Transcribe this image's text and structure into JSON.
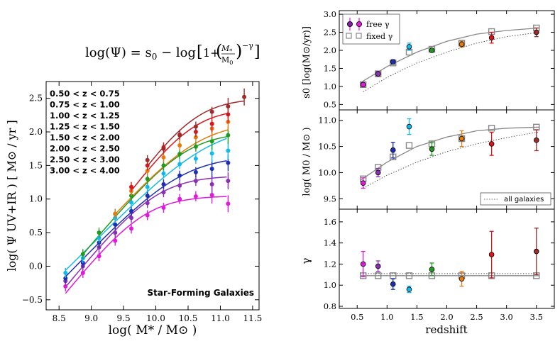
{
  "chart_data": [
    {
      "type": "scatter",
      "title": "",
      "equation": {
        "lhs": "log(Ψ) = s",
        "lhs_sub": "0",
        "mid": " − log",
        "frac_num": "M",
        "frac_num_sub": "*",
        "frac_den": "M",
        "frac_den_sub": "0",
        "exp": "−γ",
        "one_plus": "1+"
      },
      "xlabel": "log( M* / M⊙ )",
      "ylabel": "log( Ψ UV+IR ) [ M⊙ / yr ]",
      "xlim": [
        8.3,
        11.6
      ],
      "ylim": [
        -0.65,
        2.75
      ],
      "xticks": [
        "8.5",
        "9.0",
        "9.5",
        "10.0",
        "10.5",
        "11.0",
        "11.5"
      ],
      "yticks": [
        "−0.5",
        "0.0",
        "0.5",
        "1.0",
        "1.5",
        "2.0",
        "2.5"
      ],
      "annotation": "Star-Forming Galaxies",
      "annotation_color": "#1f4e9c",
      "series": [
        {
          "name": "0.50 < z < 0.75",
          "color": "#e01adb",
          "s0": 1.05,
          "m0": 9.8,
          "gamma": 1.2,
          "points": [
            [
              8.6,
              -0.3
            ],
            [
              8.87,
              -0.1
            ],
            [
              9.12,
              0.15
            ],
            [
              9.37,
              0.38
            ],
            [
              9.62,
              0.56
            ],
            [
              9.87,
              0.76
            ],
            [
              10.12,
              0.87
            ],
            [
              10.37,
              1.0
            ],
            [
              10.62,
              1.04
            ],
            [
              10.87,
              1.06
            ],
            [
              11.12,
              0.93
            ]
          ]
        },
        {
          "name": "0.75 < z < 1.00",
          "color": "#8b2fb2",
          "s0": 1.35,
          "m0": 10.0,
          "gamma": 1.18,
          "points": [
            [
              8.6,
              -0.22
            ],
            [
              8.87,
              0.0
            ],
            [
              9.12,
              0.28
            ],
            [
              9.37,
              0.5
            ],
            [
              9.62,
              0.72
            ],
            [
              9.87,
              0.94
            ],
            [
              10.12,
              1.1
            ],
            [
              10.37,
              1.2
            ],
            [
              10.62,
              1.27
            ],
            [
              10.87,
              1.22
            ],
            [
              11.12,
              1.27
            ]
          ]
        },
        {
          "name": "1.00 < z < 1.25",
          "color": "#1f2fb3",
          "s0": 1.65,
          "m0": 10.4,
          "gamma": 1.0,
          "points": [
            [
              8.6,
              -0.18
            ],
            [
              8.87,
              0.05
            ],
            [
              9.12,
              0.35
            ],
            [
              9.37,
              0.62
            ],
            [
              9.62,
              0.82
            ],
            [
              9.87,
              1.05
            ],
            [
              10.12,
              1.22
            ],
            [
              10.37,
              1.35
            ],
            [
              10.62,
              1.4
            ],
            [
              10.87,
              1.45
            ],
            [
              11.12,
              1.54
            ]
          ]
        },
        {
          "name": "1.25 < z < 1.50",
          "color": "#13b9e9",
          "s0": 2.1,
          "m0": 10.85,
          "gamma": 0.96,
          "points": [
            [
              8.6,
              -0.1
            ],
            [
              8.87,
              0.12
            ],
            [
              9.12,
              0.42
            ],
            [
              9.37,
              0.72
            ],
            [
              9.62,
              0.95
            ],
            [
              9.87,
              1.18
            ],
            [
              10.12,
              1.38
            ],
            [
              10.37,
              1.52
            ],
            [
              10.62,
              1.6
            ],
            [
              10.87,
              1.68
            ],
            [
              11.12,
              1.72
            ]
          ]
        },
        {
          "name": "1.50 < z < 2.00",
          "color": "#1f9a1f",
          "s0": 2.0,
          "m0": 10.45,
          "gamma": 1.15,
          "points": [
            [
              8.87,
              0.18
            ],
            [
              9.12,
              0.5
            ],
            [
              9.37,
              0.78
            ],
            [
              9.62,
              1.05
            ],
            [
              9.87,
              1.3
            ],
            [
              10.12,
              1.5
            ],
            [
              10.37,
              1.67
            ],
            [
              10.62,
              1.78
            ],
            [
              10.87,
              1.86
            ],
            [
              11.12,
              1.95
            ]
          ]
        },
        {
          "name": "2.00 < z < 2.50",
          "color": "#e57c10",
          "s0": 2.15,
          "m0": 10.65,
          "gamma": 1.06,
          "points": [
            [
              9.37,
              0.78
            ],
            [
              9.62,
              1.12
            ],
            [
              9.87,
              1.42
            ],
            [
              10.12,
              1.62
            ],
            [
              10.37,
              1.8
            ],
            [
              10.62,
              1.92
            ],
            [
              10.87,
              2.05
            ],
            [
              11.12,
              2.15
            ]
          ]
        },
        {
          "name": "2.50 < z < 3.00",
          "color": "#d9161b",
          "s0": 2.35,
          "m0": 10.55,
          "gamma": 1.29,
          "points": [
            [
              9.62,
              1.18
            ],
            [
              9.87,
              1.5
            ],
            [
              10.12,
              1.77
            ],
            [
              10.37,
              1.96
            ],
            [
              10.62,
              2.0
            ],
            [
              10.87,
              2.12
            ],
            [
              11.12,
              2.26
            ]
          ]
        },
        {
          "name": "3.00 < z < 4.00",
          "color": "#9e2a2a",
          "s0": 2.5,
          "m0": 10.6,
          "gamma": 1.32,
          "points": [
            [
              9.87,
              1.58
            ],
            [
              10.12,
              1.75
            ],
            [
              10.37,
              1.95
            ],
            [
              10.62,
              2.08
            ],
            [
              10.87,
              2.3
            ],
            [
              11.12,
              2.38
            ],
            [
              11.37,
              2.52
            ]
          ]
        }
      ]
    },
    {
      "type": "scatter",
      "panels": [
        "s0",
        "M0",
        "gamma"
      ],
      "xlabel": "redshift",
      "xlim": [
        0.2,
        3.8
      ],
      "xticks": [
        "0.5",
        "1.0",
        "1.5",
        "2.0",
        "2.5",
        "3.0",
        "3.5"
      ],
      "legend": {
        "free": "free γ",
        "fixed": "fixed γ",
        "all": "all galaxies"
      },
      "redshift": [
        0.6,
        0.85,
        1.1,
        1.37,
        1.75,
        2.25,
        2.75,
        3.5
      ],
      "s0": {
        "ylabel": "s0 [log(M⊙/yr)]",
        "ylim": [
          0.35,
          3.1
        ],
        "yticks": [
          "0.5",
          "1.0",
          "1.5",
          "2.0",
          "2.5",
          "3.0"
        ],
        "free": [
          1.05,
          1.35,
          1.68,
          2.1,
          2.0,
          2.17,
          2.35,
          2.5
        ],
        "free_err": [
          0.05,
          0.06,
          0.06,
          0.1,
          0.05,
          0.08,
          0.15,
          0.12
        ],
        "fixed": [
          1.05,
          1.35,
          1.65,
          1.95,
          2.03,
          2.2,
          2.52,
          2.62
        ],
        "fit_fixed": [
          [
            0.55,
            1.1
          ],
          [
            1.0,
            1.55
          ],
          [
            1.5,
            1.95
          ],
          [
            2.0,
            2.25
          ],
          [
            2.5,
            2.45
          ],
          [
            3.0,
            2.55
          ],
          [
            3.55,
            2.62
          ]
        ],
        "fit_all": [
          [
            0.6,
            0.85
          ],
          [
            1.0,
            1.25
          ],
          [
            1.5,
            1.65
          ],
          [
            2.0,
            1.95
          ],
          [
            2.5,
            2.2
          ],
          [
            3.0,
            2.38
          ],
          [
            3.55,
            2.5
          ]
        ]
      },
      "m0": {
        "ylabel": "log( M0 / M⊙ )",
        "ylim": [
          9.3,
          11.2
        ],
        "yticks": [
          "9.5",
          "10.0",
          "10.5",
          "11.0"
        ],
        "free": [
          9.8,
          10.0,
          10.43,
          10.88,
          10.45,
          10.65,
          10.55,
          10.62
        ],
        "free_err": [
          0.1,
          0.08,
          0.15,
          0.15,
          0.12,
          0.15,
          0.22,
          0.2
        ],
        "fixed": [
          9.88,
          10.1,
          10.3,
          10.52,
          10.55,
          10.65,
          10.85,
          10.87
        ],
        "fit_fixed": [
          [
            0.55,
            9.85
          ],
          [
            1.0,
            10.2
          ],
          [
            1.5,
            10.5
          ],
          [
            2.0,
            10.68
          ],
          [
            2.5,
            10.8
          ],
          [
            3.0,
            10.85
          ],
          [
            3.55,
            10.87
          ]
        ],
        "fit_all": [
          [
            0.6,
            9.7
          ],
          [
            1.0,
            9.95
          ],
          [
            1.5,
            10.2
          ],
          [
            2.0,
            10.4
          ],
          [
            2.5,
            10.55
          ],
          [
            3.0,
            10.67
          ],
          [
            3.55,
            10.78
          ]
        ]
      },
      "gamma": {
        "ylabel": "γ",
        "ylim": [
          0.78,
          1.72
        ],
        "yticks": [
          "0.8",
          "1.0",
          "1.2",
          "1.4",
          "1.6"
        ],
        "free": [
          1.2,
          1.18,
          1.01,
          0.96,
          1.15,
          1.06,
          1.29,
          1.32
        ],
        "free_err": [
          0.12,
          0.05,
          0.05,
          0.03,
          0.06,
          0.07,
          0.22,
          0.22
        ],
        "fixed": [
          1.09,
          1.09,
          1.09,
          1.09,
          1.09,
          1.09,
          1.09,
          1.09
        ],
        "fit_fixed_value": 1.09,
        "fit_all_value": 1.11
      }
    }
  ]
}
